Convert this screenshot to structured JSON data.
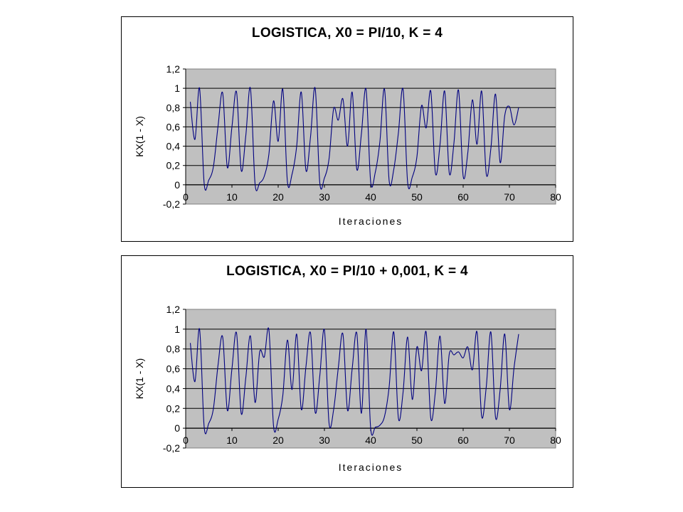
{
  "chart_data": [
    {
      "type": "line",
      "title": "LOGISTICA, X0 = PI/10, K = 4",
      "xlabel": "Iteraciones",
      "ylabel": "KX(1 - X)",
      "xlim": [
        0,
        80
      ],
      "ylim": [
        -0.2,
        1.2
      ],
      "x_ticks": [
        0,
        10,
        20,
        30,
        40,
        50,
        60,
        70,
        80
      ],
      "y_ticks": [
        -0.2,
        0,
        0.2,
        0.4,
        0.6,
        0.8,
        1,
        1.2
      ],
      "x_tick_labels": [
        "0",
        "10",
        "20",
        "30",
        "40",
        "50",
        "60",
        "70",
        "80"
      ],
      "y_tick_labels": [
        "-0,2",
        "0",
        "0,2",
        "0,4",
        "0,6",
        "0,8",
        "1",
        "1,2"
      ],
      "plot_background": "#c0c0c0",
      "line_color": "#000080",
      "grid": "horizontal",
      "legend": "none",
      "series": [
        {
          "x": [
            1,
            2,
            3,
            4,
            5,
            6,
            7,
            8,
            9,
            10,
            11,
            12,
            13,
            14,
            15,
            16,
            17,
            18,
            19,
            20,
            21,
            22,
            23,
            24,
            25,
            26,
            27,
            28,
            29,
            30,
            31,
            32,
            33,
            34,
            35,
            36,
            37,
            38,
            39,
            40,
            41,
            42,
            43,
            44,
            45,
            46,
            47,
            48,
            49,
            50,
            51,
            52,
            53,
            54,
            55,
            56,
            57,
            58,
            59,
            60,
            61,
            62,
            63,
            64,
            65,
            66,
            67,
            68,
            69,
            70,
            71,
            72
          ],
          "values": [
            0.86,
            0.47,
            1.0,
            0.01,
            0.05,
            0.19,
            0.61,
            0.95,
            0.18,
            0.6,
            0.96,
            0.15,
            0.51,
            1.0,
            0.01,
            0.02,
            0.09,
            0.32,
            0.87,
            0.45,
            0.99,
            0.03,
            0.11,
            0.4,
            0.96,
            0.15,
            0.5,
            1.0,
            0.02,
            0.07,
            0.27,
            0.79,
            0.67,
            0.89,
            0.4,
            0.96,
            0.16,
            0.53,
            0.99,
            0.03,
            0.13,
            0.45,
            0.99,
            0.04,
            0.16,
            0.54,
            0.99,
            0.02,
            0.08,
            0.29,
            0.82,
            0.59,
            0.97,
            0.12,
            0.42,
            0.97,
            0.12,
            0.43,
            0.98,
            0.09,
            0.33,
            0.88,
            0.42,
            0.97,
            0.11,
            0.38,
            0.94,
            0.23,
            0.72,
            0.81,
            0.62,
            0.8
          ]
        }
      ]
    },
    {
      "type": "line",
      "title": "LOGISTICA, X0 = PI/10 + 0,001, K = 4",
      "xlabel": "Iteraciones",
      "ylabel": "KX(1 - X)",
      "xlim": [
        0,
        80
      ],
      "ylim": [
        -0.2,
        1.2
      ],
      "x_ticks": [
        0,
        10,
        20,
        30,
        40,
        50,
        60,
        70,
        80
      ],
      "y_ticks": [
        -0.2,
        0,
        0.2,
        0.4,
        0.6,
        0.8,
        1,
        1.2
      ],
      "x_tick_labels": [
        "0",
        "10",
        "20",
        "30",
        "40",
        "50",
        "60",
        "70",
        "80"
      ],
      "y_tick_labels": [
        "-0,2",
        "0",
        "0,2",
        "0,4",
        "0,6",
        "0,8",
        "1",
        "1,2"
      ],
      "plot_background": "#c0c0c0",
      "line_color": "#000080",
      "grid": "horizontal",
      "legend": "none",
      "series": [
        {
          "x": [
            1,
            2,
            3,
            4,
            5,
            6,
            7,
            8,
            9,
            10,
            11,
            12,
            13,
            14,
            15,
            16,
            17,
            18,
            19,
            20,
            21,
            22,
            23,
            24,
            25,
            26,
            27,
            28,
            29,
            30,
            31,
            32,
            33,
            34,
            35,
            36,
            37,
            38,
            39,
            40,
            41,
            42,
            43,
            44,
            45,
            46,
            47,
            48,
            49,
            50,
            51,
            52,
            53,
            54,
            55,
            56,
            57,
            58,
            59,
            60,
            61,
            62,
            63,
            64,
            65,
            66,
            67,
            68,
            69,
            70,
            71,
            72
          ],
          "values": [
            0.86,
            0.47,
            1.0,
            0.01,
            0.05,
            0.2,
            0.64,
            0.92,
            0.18,
            0.6,
            0.96,
            0.15,
            0.51,
            0.93,
            0.26,
            0.77,
            0.72,
            0.99,
            0.02,
            0.09,
            0.33,
            0.89,
            0.39,
            0.95,
            0.19,
            0.62,
            0.96,
            0.16,
            0.53,
            0.99,
            0.05,
            0.19,
            0.61,
            0.95,
            0.18,
            0.6,
            0.96,
            0.15,
            1.0,
            0.0,
            0.01,
            0.03,
            0.12,
            0.42,
            0.97,
            0.1,
            0.36,
            0.92,
            0.29,
            0.82,
            0.58,
            0.97,
            0.1,
            0.37,
            0.93,
            0.25,
            0.75,
            0.74,
            0.77,
            0.71,
            0.82,
            0.59,
            0.97,
            0.12,
            0.42,
            0.97,
            0.11,
            0.39,
            0.95,
            0.19,
            0.61,
            0.95
          ]
        }
      ]
    }
  ]
}
